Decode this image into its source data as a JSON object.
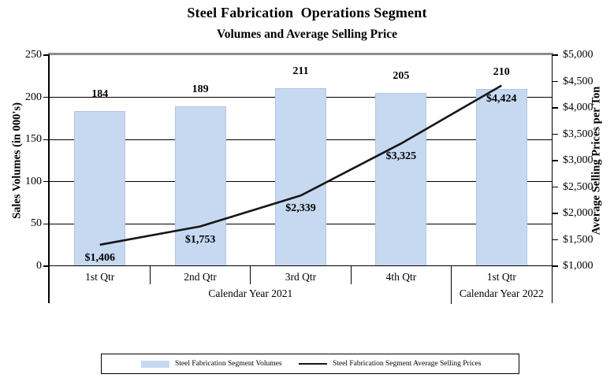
{
  "header": {
    "title": "Steel Fabrication  Operations Segment",
    "subtitle": "Volumes and Average Selling Price"
  },
  "chart_data": {
    "type": "bar+line combo",
    "categories": [
      "1st Qtr",
      "2nd Qtr",
      "3rd Qtr",
      "4th Qtr",
      "1st Qtr"
    ],
    "category_groups": [
      {
        "label": "Calendar Year 2021",
        "span": 4
      },
      {
        "label": "Calendar Year 2022",
        "span": 1
      }
    ],
    "series": [
      {
        "name": "Steel Fabrication Segment Volumes",
        "type": "bar",
        "axis": "left",
        "color": "#c6d9f1",
        "values": [
          184,
          189,
          211,
          205,
          210
        ],
        "value_labels": [
          "184",
          "189",
          "211",
          "205",
          "210"
        ]
      },
      {
        "name": "Steel Fabrication Segment Average Selling Prices",
        "type": "line",
        "axis": "right",
        "color": "#161616",
        "values": [
          1406,
          1753,
          2339,
          3325,
          4424
        ],
        "value_labels": [
          "$1,406",
          "$1,753",
          "$2,339",
          "$3,325",
          "$4,424"
        ]
      }
    ],
    "left_axis": {
      "title": "Sales Volumes (in 000's)",
      "min": 0,
      "max": 250,
      "step": 50,
      "tick_labels": [
        "0",
        "50",
        "100",
        "150",
        "200",
        "250"
      ]
    },
    "right_axis": {
      "title": "Average Selling Prices per Ton",
      "min": 1000,
      "max": 5000,
      "step": 500,
      "tick_labels": [
        "$1,000",
        "$1,500",
        "$2,000",
        "$2,500",
        "$3,000",
        "$3,500",
        "$4,000",
        "$4,500",
        "$5,000"
      ]
    },
    "grid": "horizontal gridlines at left-axis ticks 50,100,150,200",
    "legend_position": "bottom"
  },
  "legend": {
    "items": [
      {
        "label": "Steel Fabrication Segment Volumes",
        "swatch": "bar"
      },
      {
        "label": "Steel Fabrication Segment Average Selling Prices",
        "swatch": "line"
      }
    ]
  }
}
